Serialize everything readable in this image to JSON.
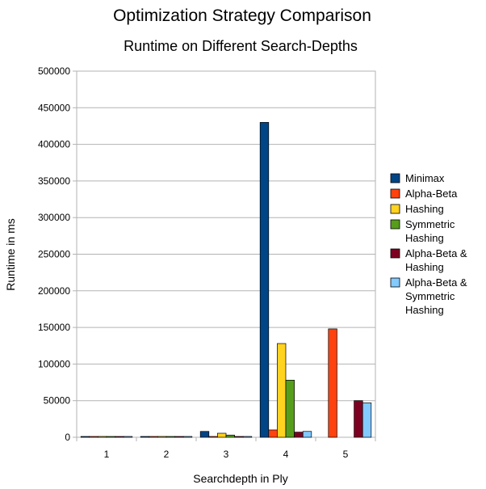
{
  "chart_data": {
    "type": "bar",
    "title": "Optimization Strategy Comparison",
    "subtitle": "Runtime on Different Search-Depths",
    "xlabel": "Searchdepth in Ply",
    "ylabel": "Runtime in ms",
    "ylim": [
      0,
      500000
    ],
    "yticks": [
      "0",
      "50000",
      "100000",
      "150000",
      "200000",
      "250000",
      "300000",
      "350000",
      "400000",
      "450000",
      "500000"
    ],
    "categories": [
      "1",
      "2",
      "3",
      "4",
      "5"
    ],
    "grid": true,
    "legend_position": "right",
    "series": [
      {
        "name": "Minimax",
        "lines": [
          "Minimax"
        ],
        "color": "#004586",
        "values": [
          0,
          0,
          8000,
          430000,
          null
        ]
      },
      {
        "name": "Alpha-Beta",
        "lines": [
          "Alpha-Beta"
        ],
        "color": "#ff420e",
        "values": [
          0,
          0,
          1000,
          10000,
          148000
        ]
      },
      {
        "name": "Hashing",
        "lines": [
          "Hashing"
        ],
        "color": "#ffd320",
        "values": [
          0,
          0,
          5500,
          128000,
          null
        ]
      },
      {
        "name": "Symmetric Hashing",
        "lines": [
          "Symmetric",
          "Hashing"
        ],
        "color": "#579d1c",
        "values": [
          0,
          0,
          3000,
          78000,
          null
        ]
      },
      {
        "name": "Alpha-Beta & Hashing",
        "lines": [
          "Alpha-Beta &",
          "Hashing"
        ],
        "color": "#7e0021",
        "values": [
          0,
          0,
          500,
          7000,
          50000
        ]
      },
      {
        "name": "Alpha-Beta & Symmetric Hashing",
        "lines": [
          "Alpha-Beta &",
          "Symmetric",
          "Hashing"
        ],
        "color": "#83caff",
        "values": [
          0,
          0,
          500,
          8000,
          47000
        ]
      }
    ]
  }
}
